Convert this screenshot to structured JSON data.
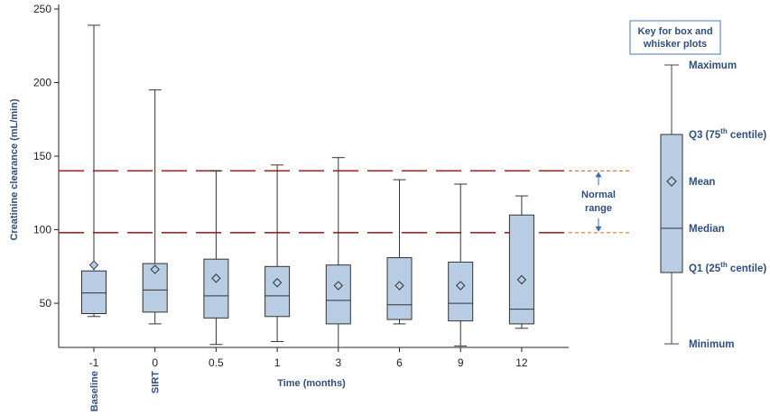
{
  "chart_data": {
    "type": "boxplot",
    "xlabel": "Time (months)",
    "ylabel": "Creatinine clearance (mL/min)",
    "ylim": [
      20,
      250
    ],
    "y_ticks": [
      50,
      100,
      150,
      200,
      250
    ],
    "categories": [
      "-1",
      "0",
      "0.5",
      "1",
      "3",
      "6",
      "9",
      "12"
    ],
    "sub_labels": [
      "Baseline",
      "SIRT",
      "",
      "",
      "",
      "",
      "",
      ""
    ],
    "boxes": [
      {
        "x": "-1",
        "min": 41,
        "q1": 43,
        "median": 57,
        "q3": 72,
        "max": 239,
        "mean": 76
      },
      {
        "x": "0",
        "min": 36,
        "q1": 44,
        "median": 59,
        "q3": 77,
        "max": 195,
        "mean": 73
      },
      {
        "x": "0.5",
        "min": 22,
        "q1": 40,
        "median": 55,
        "q3": 80,
        "max": 140,
        "mean": 67
      },
      {
        "x": "1",
        "min": 24,
        "q1": 41,
        "median": 55,
        "q3": 75,
        "max": 144,
        "mean": 64
      },
      {
        "x": "3",
        "min": 20,
        "q1": 36,
        "median": 52,
        "q3": 76,
        "max": 149,
        "mean": 62
      },
      {
        "x": "6",
        "min": 36,
        "q1": 39,
        "median": 49,
        "q3": 81,
        "max": 134,
        "mean": 62
      },
      {
        "x": "9",
        "min": 21,
        "q1": 38,
        "median": 50,
        "q3": 78,
        "max": 131,
        "mean": 62
      },
      {
        "x": "12",
        "min": 33,
        "q1": 36,
        "median": 46,
        "q3": 110,
        "max": 123,
        "mean": 66
      }
    ],
    "normal_range": {
      "low": 98,
      "high": 140,
      "label_line1": "Normal",
      "label_line2": "range"
    },
    "key": {
      "title_line1": "Key for box and",
      "title_line2": "whisker plots",
      "maximum": "Maximum",
      "q3_prefix": "Q3 (75",
      "q3_sup": "th",
      "q3_suffix": " centile)",
      "mean": "Mean",
      "median": "Median",
      "q1_prefix": "Q1 (25",
      "q1_sup": "th",
      "q1_suffix": " centile)",
      "minimum": "Minimum"
    },
    "colors": {
      "box_fill": "#b8cce4",
      "box_stroke": "#333333",
      "normal_line": "#a0282d",
      "normal_line_ext": "#e07a3a",
      "label": "#2f4f7f",
      "arrow": "#2f6fb5"
    }
  }
}
